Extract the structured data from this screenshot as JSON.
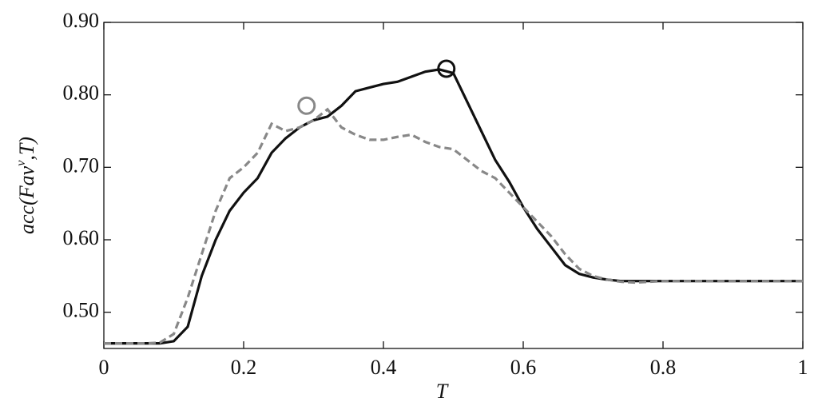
{
  "chart_data": {
    "type": "line",
    "xlabel": "T",
    "ylabel": [
      "acc(Fav",
      "v",
      ",T)"
    ],
    "xlim": [
      0,
      1
    ],
    "ylim": [
      0.45,
      0.9
    ],
    "xticks": [
      0,
      0.2,
      0.4,
      0.6,
      0.8,
      1
    ],
    "yticks": [
      {
        "value": 0.5,
        "label": "0.50"
      },
      {
        "value": 0.6,
        "label": "0.60"
      },
      {
        "value": 0.7,
        "label": "0.70"
      },
      {
        "value": 0.8,
        "label": "0.80"
      },
      {
        "value": 0.9,
        "label": "0.90"
      }
    ],
    "grid": false,
    "x": [
      0,
      0.02,
      0.04,
      0.06,
      0.08,
      0.1,
      0.12,
      0.14,
      0.16,
      0.18,
      0.2,
      0.22,
      0.24,
      0.26,
      0.28,
      0.3,
      0.32,
      0.34,
      0.36,
      0.38,
      0.4,
      0.42,
      0.44,
      0.46,
      0.48,
      0.5,
      0.52,
      0.54,
      0.56,
      0.58,
      0.6,
      0.62,
      0.64,
      0.66,
      0.68,
      0.7,
      0.72,
      0.74,
      0.76,
      0.78,
      0.8,
      0.82,
      0.84,
      0.86,
      0.88,
      0.9,
      0.92,
      0.94,
      0.96,
      0.98,
      1
    ],
    "series": [
      {
        "color": "#111111",
        "dash": false,
        "values": [
          0.457,
          0.457,
          0.457,
          0.457,
          0.457,
          0.46,
          0.48,
          0.55,
          0.6,
          0.64,
          0.665,
          0.685,
          0.72,
          0.74,
          0.755,
          0.765,
          0.77,
          0.785,
          0.805,
          0.81,
          0.815,
          0.818,
          0.825,
          0.832,
          0.835,
          0.83,
          0.79,
          0.75,
          0.71,
          0.68,
          0.645,
          0.615,
          0.59,
          0.565,
          0.553,
          0.548,
          0.545,
          0.543,
          0.543,
          0.543,
          0.543,
          0.543,
          0.543,
          0.543,
          0.543,
          0.543,
          0.543,
          0.543,
          0.543,
          0.543,
          0.543
        ]
      },
      {
        "color": "#888888",
        "dash": true,
        "values": [
          0.457,
          0.457,
          0.457,
          0.457,
          0.458,
          0.47,
          0.52,
          0.58,
          0.64,
          0.685,
          0.7,
          0.72,
          0.76,
          0.75,
          0.755,
          0.765,
          0.78,
          0.755,
          0.745,
          0.738,
          0.738,
          0.742,
          0.745,
          0.735,
          0.728,
          0.725,
          0.71,
          0.695,
          0.685,
          0.665,
          0.645,
          0.625,
          0.605,
          0.58,
          0.56,
          0.55,
          0.545,
          0.542,
          0.541,
          0.542,
          0.543,
          0.543,
          0.543,
          0.543,
          0.543,
          0.543,
          0.543,
          0.543,
          0.543,
          0.543,
          0.543
        ]
      }
    ],
    "peaks": [
      {
        "x": 0.29,
        "y": 0.785,
        "color": "#888888"
      },
      {
        "x": 0.49,
        "y": 0.836,
        "color": "#111111"
      }
    ]
  }
}
